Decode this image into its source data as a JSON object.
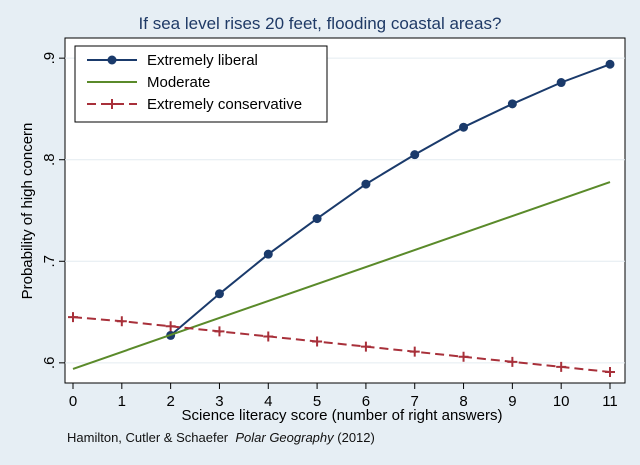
{
  "chart_data": {
    "type": "line",
    "title": "If sea level rises 20 feet, flooding coastal areas?",
    "xlabel": "Science literacy score (number of right answers)",
    "ylabel": "Probability of high concern",
    "x": [
      0,
      1,
      2,
      3,
      4,
      5,
      6,
      7,
      8,
      9,
      10,
      11
    ],
    "xlim": [
      0,
      11
    ],
    "ylim": [
      0.59,
      0.91
    ],
    "yticks": [
      0.6,
      0.7,
      0.8,
      0.9
    ],
    "ytick_labels": [
      ".6",
      ".7",
      ".8",
      ".9"
    ],
    "xtick_labels": [
      "0",
      "1",
      "2",
      "3",
      "4",
      "5",
      "6",
      "7",
      "8",
      "9",
      "10",
      "11"
    ],
    "legend_position": "top-left",
    "series": [
      {
        "name": "Extremely liberal",
        "color": "#1a3a6b",
        "marker": "circle",
        "dash": "solid",
        "x": [
          2,
          3,
          4,
          5,
          6,
          7,
          8,
          9,
          10,
          11
        ],
        "values": [
          0.627,
          0.668,
          0.707,
          0.742,
          0.776,
          0.805,
          0.832,
          0.855,
          0.876,
          0.894
        ]
      },
      {
        "name": "Moderate",
        "color": "#5a8a2a",
        "marker": "none",
        "dash": "solid",
        "x": [
          0,
          11
        ],
        "values": [
          0.594,
          0.778
        ]
      },
      {
        "name": "Extremely conservative",
        "color": "#a8303a",
        "marker": "plus",
        "dash": "dashed",
        "x": [
          0,
          1,
          2,
          3,
          4,
          5,
          6,
          7,
          8,
          9,
          10,
          11
        ],
        "values": [
          0.645,
          0.641,
          0.636,
          0.631,
          0.626,
          0.621,
          0.616,
          0.611,
          0.606,
          0.601,
          0.596,
          0.591
        ]
      }
    ]
  },
  "source": {
    "authors": "Hamilton, Cutler & Schaefer",
    "journal": "Polar Geography",
    "year": "(2012)"
  }
}
